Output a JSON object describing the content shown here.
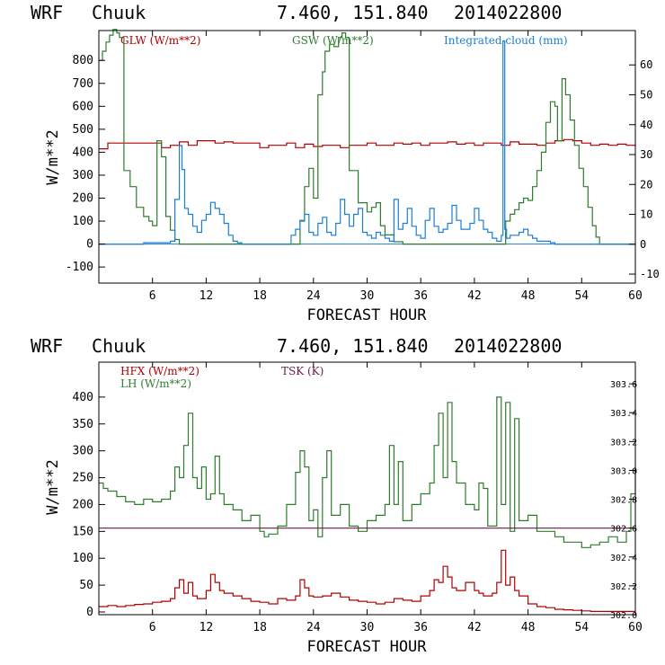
{
  "chart_data": [
    {
      "type": "line",
      "header": {
        "model": "WRF",
        "station": "Chuuk",
        "coords": "7.460, 151.840",
        "date": "2014022800"
      },
      "xlabel": "FORECAST HOUR",
      "ylabel": "W/m**2",
      "xlim": [
        0,
        60
      ],
      "xticks": [
        6,
        12,
        18,
        24,
        30,
        36,
        42,
        48,
        54,
        60
      ],
      "ylim": [
        -170,
        930
      ],
      "yticks": [
        -100,
        0,
        100,
        200,
        300,
        400,
        500,
        600,
        700,
        800
      ],
      "y2lim": [
        -13,
        71.5
      ],
      "y2ticks": [
        -10,
        0,
        10,
        20,
        30,
        40,
        50,
        60
      ],
      "series": [
        {
          "name": "GLW (W/m**2)",
          "color": "#b00000",
          "axis": "left",
          "x": [
            0,
            1,
            2,
            3,
            4,
            5,
            6,
            7,
            8,
            9,
            10,
            11,
            12,
            13,
            14,
            15,
            16,
            17,
            18,
            19,
            20,
            21,
            22,
            23,
            24,
            25,
            26,
            27,
            28,
            29,
            30,
            31,
            32,
            33,
            34,
            35,
            36,
            37,
            38,
            39,
            40,
            41,
            42,
            43,
            44,
            45,
            46,
            47,
            48,
            49,
            50,
            51,
            52,
            53,
            54,
            55,
            56,
            57,
            58,
            59,
            60
          ],
          "values": [
            415,
            440,
            440,
            440,
            440,
            440,
            440,
            420,
            430,
            445,
            430,
            450,
            450,
            440,
            445,
            440,
            440,
            440,
            420,
            430,
            430,
            440,
            420,
            435,
            425,
            430,
            430,
            420,
            430,
            430,
            440,
            430,
            430,
            440,
            435,
            440,
            430,
            440,
            440,
            445,
            435,
            440,
            430,
            440,
            440,
            430,
            445,
            435,
            435,
            430,
            440,
            450,
            455,
            450,
            440,
            430,
            435,
            430,
            435,
            430,
            435
          ]
        },
        {
          "name": "GSW (W/m**2)",
          "color": "#2e7d2e",
          "axis": "left",
          "x": [
            0,
            0.4,
            0.8,
            1.2,
            1.6,
            2.0,
            2.3,
            2.8,
            3.5,
            4.2,
            5.0,
            5.6,
            6.0,
            6.5,
            7.0,
            7.5,
            8.0,
            8.5,
            9,
            10,
            11,
            12,
            13,
            14,
            15,
            16,
            17,
            18,
            19,
            20,
            21,
            22,
            22.5,
            23,
            23.5,
            24,
            24.5,
            25,
            25.3,
            25.8,
            26.3,
            26.8,
            27.2,
            27.6,
            28,
            29,
            30,
            30.5,
            31,
            31.5,
            32,
            33,
            34,
            35,
            36,
            37,
            38,
            39,
            40,
            41,
            42,
            43,
            44,
            45,
            45.5,
            46,
            46.5,
            47,
            47.5,
            48,
            48.5,
            49,
            49.5,
            50,
            50.5,
            51,
            51.3,
            51.8,
            52.2,
            52.7,
            53.2,
            53.7,
            54.2,
            54.7,
            55.2,
            55.6,
            56,
            57,
            58,
            59,
            60
          ],
          "values": [
            800,
            840,
            880,
            910,
            935,
            920,
            900,
            320,
            250,
            160,
            120,
            100,
            80,
            450,
            380,
            120,
            60,
            20,
            0,
            0,
            0,
            0,
            0,
            0,
            0,
            0,
            0,
            0,
            0,
            0,
            0,
            0,
            100,
            250,
            330,
            200,
            650,
            750,
            840,
            870,
            860,
            900,
            920,
            900,
            320,
            180,
            140,
            160,
            180,
            80,
            40,
            10,
            0,
            0,
            0,
            0,
            0,
            0,
            0,
            0,
            0,
            0,
            0,
            0,
            100,
            130,
            150,
            180,
            200,
            190,
            250,
            320,
            400,
            530,
            620,
            600,
            450,
            720,
            650,
            540,
            430,
            330,
            250,
            160,
            80,
            30,
            0,
            0,
            0,
            0,
            0
          ]
        },
        {
          "name": "Integrated cloud (mm)",
          "color": "#1a7fd4",
          "axis": "right",
          "x": [
            0,
            1,
            2,
            3,
            4,
            5,
            6,
            7,
            8,
            8.5,
            9,
            9.3,
            9.6,
            10,
            10.5,
            11,
            11.5,
            12,
            12.5,
            13,
            13.5,
            14,
            14.5,
            15,
            15.5,
            16,
            17,
            18,
            19,
            20,
            21,
            21.5,
            22,
            22.5,
            23,
            23.5,
            24,
            24.5,
            25,
            25.5,
            26,
            26.5,
            27,
            27.5,
            28,
            28.5,
            29,
            29.5,
            30,
            30.5,
            31,
            31.5,
            32,
            32.5,
            33,
            33.5,
            34,
            34.5,
            35,
            35.5,
            36,
            36.5,
            37,
            37.5,
            38,
            38.5,
            39,
            39.5,
            40,
            40.5,
            41,
            41.5,
            42,
            42.5,
            43,
            43.5,
            44,
            44.5,
            45,
            45.2,
            45.4,
            45.6,
            45.8,
            46,
            46.5,
            47,
            47.5,
            48,
            48.5,
            49,
            49.5,
            50,
            50.5,
            51,
            52,
            53,
            54,
            55,
            56,
            57,
            58,
            59,
            60
          ],
          "values": [
            0,
            0,
            0,
            0,
            0,
            0.5,
            0.5,
            0.5,
            1,
            15,
            33,
            25,
            12,
            10,
            6,
            4,
            8,
            10,
            14,
            12,
            10,
            7,
            3,
            1,
            0.5,
            0,
            0,
            0,
            0,
            0,
            0,
            3,
            5,
            8,
            10,
            4,
            3,
            7,
            9,
            4,
            3,
            7,
            15,
            10,
            6,
            10,
            12,
            4,
            3,
            2,
            4,
            3,
            2,
            1,
            15,
            5,
            7,
            12,
            6,
            3,
            2,
            8,
            12,
            6,
            4,
            5,
            7,
            13,
            8,
            5,
            5,
            7,
            12,
            8,
            5,
            4,
            2,
            1,
            3,
            68,
            5,
            2,
            2,
            3,
            3,
            4,
            5,
            3,
            2,
            1,
            1,
            1,
            0.5,
            0,
            0,
            0,
            0,
            0,
            0,
            0,
            0,
            0,
            0
          ]
        }
      ]
    },
    {
      "type": "line",
      "header": {
        "model": "WRF",
        "station": "Chuuk",
        "coords": "7.460, 151.840",
        "date": "2014022800"
      },
      "xlabel": "FORECAST HOUR",
      "ylabel": "W/m**2",
      "xlim": [
        0,
        60
      ],
      "xticks": [
        6,
        12,
        18,
        24,
        30,
        36,
        42,
        48,
        54,
        60
      ],
      "ylim": [
        -5,
        465
      ],
      "yticks": [
        0,
        50,
        100,
        150,
        200,
        250,
        300,
        350,
        400
      ],
      "y2lim": [
        302.0,
        303.75
      ],
      "y2ticks": [
        "302.0",
        "302.2",
        "302.4",
        "302.6",
        "302.8",
        "303.0",
        "303.2",
        "303.4",
        "303.6"
      ],
      "series": [
        {
          "name": "HFX (W/m**2)",
          "color": "#b00000",
          "axis": "left",
          "x": [
            0,
            1,
            2,
            3,
            4,
            5,
            6,
            7,
            8,
            8.5,
            9,
            9.5,
            10,
            10.5,
            11,
            12,
            12.5,
            13,
            13.5,
            14,
            15,
            16,
            17,
            18,
            19,
            20,
            21,
            22,
            22.5,
            23,
            23.5,
            24,
            25,
            26,
            27,
            28,
            29,
            30,
            31,
            32,
            33,
            34,
            35,
            36,
            37,
            37.5,
            38,
            38.5,
            39,
            39.5,
            40,
            41,
            42,
            42.5,
            43,
            44,
            44.5,
            45,
            45.5,
            46,
            46.5,
            47,
            48,
            49,
            50,
            51,
            52,
            53,
            54,
            55,
            56,
            57,
            58,
            59,
            60
          ],
          "values": [
            10,
            12,
            10,
            12,
            14,
            15,
            18,
            20,
            25,
            45,
            60,
            35,
            55,
            30,
            25,
            40,
            70,
            55,
            40,
            35,
            30,
            25,
            20,
            18,
            15,
            25,
            22,
            30,
            60,
            45,
            30,
            28,
            30,
            35,
            28,
            22,
            20,
            18,
            15,
            18,
            25,
            22,
            20,
            30,
            40,
            60,
            55,
            85,
            65,
            45,
            40,
            55,
            40,
            35,
            30,
            35,
            55,
            115,
            50,
            65,
            40,
            30,
            15,
            10,
            8,
            5,
            4,
            3,
            2,
            1,
            1,
            1,
            1,
            1,
            1
          ]
        },
        {
          "name": "LH (W/m**2)",
          "color": "#2e7d2e",
          "axis": "left",
          "x": [
            0,
            0.5,
            1,
            2,
            3,
            4,
            5,
            6,
            7,
            8,
            8.5,
            9,
            9.5,
            10,
            10.5,
            11,
            11.5,
            12,
            12.5,
            13,
            13.5,
            14,
            15,
            16,
            17,
            18,
            18.5,
            19,
            20,
            21,
            22,
            22.5,
            23,
            23.5,
            24,
            24.5,
            25,
            25.5,
            26,
            27,
            28,
            29,
            30,
            31,
            32,
            32.5,
            33,
            33.5,
            34,
            35,
            36,
            37,
            37.5,
            38,
            38.5,
            39,
            39.5,
            40,
            41,
            42,
            42.5,
            43,
            43.5,
            44,
            44.5,
            45,
            45.5,
            46,
            46.5,
            47,
            48,
            49,
            50,
            51,
            52,
            53,
            54,
            55,
            56,
            57,
            58,
            59,
            59.5,
            60
          ],
          "values": [
            240,
            230,
            225,
            215,
            205,
            200,
            210,
            205,
            210,
            225,
            270,
            250,
            310,
            370,
            250,
            230,
            270,
            210,
            220,
            290,
            220,
            200,
            190,
            170,
            180,
            150,
            140,
            145,
            160,
            200,
            260,
            300,
            270,
            170,
            190,
            140,
            250,
            300,
            180,
            200,
            160,
            150,
            170,
            180,
            200,
            310,
            200,
            280,
            170,
            200,
            220,
            240,
            310,
            370,
            250,
            390,
            280,
            240,
            200,
            190,
            240,
            230,
            160,
            160,
            400,
            200,
            390,
            150,
            360,
            170,
            180,
            150,
            150,
            140,
            130,
            130,
            120,
            125,
            130,
            140,
            130,
            150,
            220,
            270
          ]
        },
        {
          "name": "TSK (K)",
          "color": "#6b1a4a",
          "axis": "right",
          "x": [
            0,
            60
          ],
          "values": [
            302.6,
            302.6
          ]
        }
      ]
    }
  ],
  "colors": {
    "axes": "#000000",
    "glw": "#b00000",
    "gsw": "#2e7d2e",
    "cloud": "#1a7fd4",
    "tsk": "#6b1a4a"
  }
}
